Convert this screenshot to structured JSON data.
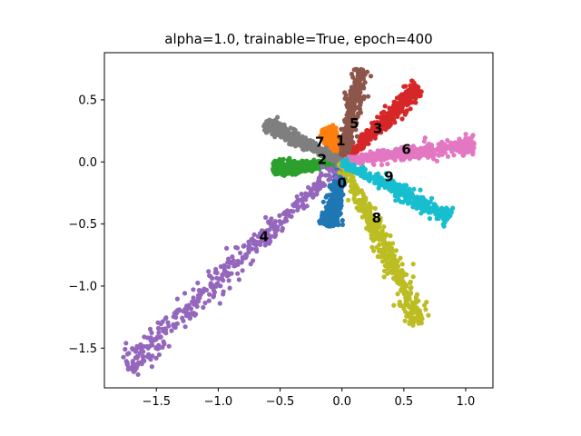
{
  "chart_data": {
    "type": "scatter",
    "title": "alpha=1.0, trainable=True, epoch=400",
    "xlabel": "",
    "ylabel": "",
    "xlim": [
      -1.92,
      1.22
    ],
    "ylim": [
      -1.82,
      0.88
    ],
    "xticks": [
      -1.5,
      -1.0,
      -0.5,
      0.0,
      0.5,
      1.0
    ],
    "yticks": [
      -1.5,
      -1.0,
      -0.5,
      0.0,
      0.5
    ],
    "xtick_labels": [
      "−1.5",
      "−1.0",
      "−0.5",
      "0.0",
      "0.5",
      "1.0"
    ],
    "ytick_labels": [
      "−1.5",
      "−1.0",
      "−0.5",
      "0.0",
      "0.5"
    ],
    "grid": false,
    "series": [
      {
        "label": "0",
        "color": "#1f77b4",
        "label_pos": [
          0.0,
          -0.17
        ],
        "arm": {
          "start": [
            0.0,
            0.0
          ],
          "end": [
            -0.1,
            -0.52
          ],
          "width": 0.03
        }
      },
      {
        "label": "1",
        "color": "#ff7f0e",
        "label_pos": [
          -0.01,
          0.17
        ],
        "arm": {
          "start": [
            0.0,
            0.0
          ],
          "end": [
            -0.13,
            0.27
          ],
          "width": 0.025
        }
      },
      {
        "label": "2",
        "color": "#2ca02c",
        "label_pos": [
          -0.16,
          0.02
        ],
        "arm": {
          "start": [
            0.0,
            0.0
          ],
          "end": [
            -0.56,
            -0.06
          ],
          "width": 0.025
        }
      },
      {
        "label": "3",
        "color": "#d62728",
        "label_pos": [
          0.29,
          0.27
        ],
        "arm": {
          "start": [
            0.0,
            0.0
          ],
          "end": [
            0.62,
            0.6
          ],
          "width": 0.03
        }
      },
      {
        "label": "4",
        "color": "#9467bd",
        "label_pos": [
          -0.63,
          -0.6
        ],
        "arm": {
          "start": [
            0.0,
            0.0
          ],
          "end": [
            -1.75,
            -1.65
          ],
          "width": 0.05
        }
      },
      {
        "label": "5",
        "color": "#8c564b",
        "label_pos": [
          0.1,
          0.31
        ],
        "arm": {
          "start": [
            0.0,
            0.0
          ],
          "end": [
            0.15,
            0.75
          ],
          "width": 0.03
        }
      },
      {
        "label": "6",
        "color": "#e377c2",
        "label_pos": [
          0.52,
          0.1
        ],
        "arm": {
          "start": [
            0.0,
            0.0
          ],
          "end": [
            1.07,
            0.14
          ],
          "width": 0.03
        }
      },
      {
        "label": "7",
        "color": "#7f7f7f",
        "label_pos": [
          -0.18,
          0.16
        ],
        "arm": {
          "start": [
            0.0,
            0.0
          ],
          "end": [
            -0.62,
            0.31
          ],
          "width": 0.025
        }
      },
      {
        "label": "8",
        "color": "#bcbd22",
        "label_pos": [
          0.28,
          -0.45
        ],
        "arm": {
          "start": [
            0.0,
            0.0
          ],
          "end": [
            0.64,
            -1.3
          ],
          "width": 0.04
        }
      },
      {
        "label": "9",
        "color": "#17becf",
        "label_pos": [
          0.38,
          -0.12
        ],
        "arm": {
          "start": [
            0.0,
            0.0
          ],
          "end": [
            0.87,
            -0.45
          ],
          "width": 0.03
        }
      }
    ]
  }
}
